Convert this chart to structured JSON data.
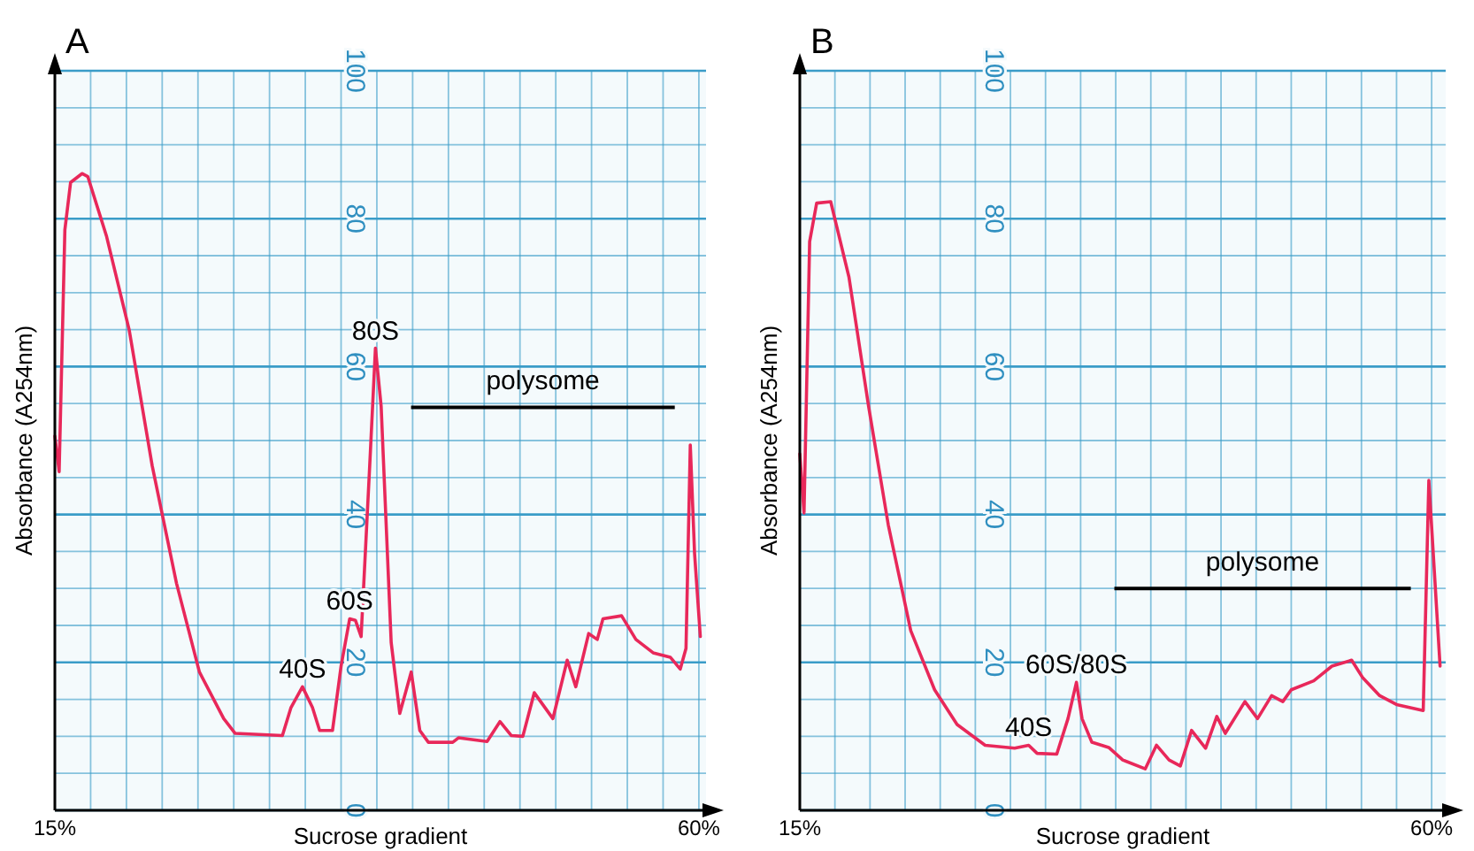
{
  "chart_data": [
    {
      "type": "line",
      "title": "A",
      "xlabel": "Sucrose gradient",
      "ylabel": "Absorbance (A254nm)",
      "xlim": [
        15,
        60.5
      ],
      "ylim": [
        0,
        100
      ],
      "xticks": [
        {
          "value": 15,
          "label": "15%"
        },
        {
          "value": 17.5,
          "label": null
        },
        {
          "value": 20,
          "label": null
        },
        {
          "value": 22.5,
          "label": null
        },
        {
          "value": 25,
          "label": null
        },
        {
          "value": 27.5,
          "label": null
        },
        {
          "value": 30,
          "label": null
        },
        {
          "value": 32.5,
          "label": null
        },
        {
          "value": 35,
          "label": null
        },
        {
          "value": 37.5,
          "label": null
        },
        {
          "value": 40,
          "label": null
        },
        {
          "value": 42.5,
          "label": null
        },
        {
          "value": 45,
          "label": null
        },
        {
          "value": 47.5,
          "label": null
        },
        {
          "value": 50,
          "label": null
        },
        {
          "value": 52.5,
          "label": null
        },
        {
          "value": 55,
          "label": null
        },
        {
          "value": 57.5,
          "label": null
        },
        {
          "value": 60,
          "label": "60%"
        }
      ],
      "yticks": [
        0,
        {
          "value": 5,
          "label": null
        },
        {
          "value": 10,
          "label": null
        },
        {
          "value": 15,
          "label": null
        },
        20,
        {
          "value": 25,
          "label": null
        },
        {
          "value": 30,
          "label": null
        },
        {
          "value": 35,
          "label": null
        },
        40,
        {
          "value": 45,
          "label": null
        },
        {
          "value": 50,
          "label": null
        },
        {
          "value": 55,
          "label": null
        },
        60,
        {
          "value": 65,
          "label": null
        },
        {
          "value": 70,
          "label": null
        },
        {
          "value": 75,
          "label": null
        },
        80,
        {
          "value": 85,
          "label": null
        },
        {
          "value": 90,
          "label": null
        },
        {
          "value": 95,
          "label": null
        },
        100
      ],
      "grid": true,
      "marker": "none",
      "line_style": "solid",
      "series": [
        {
          "color": "#e8285a",
          "x": [
            15.0,
            15.3,
            15.7,
            16.1,
            16.9,
            17.3,
            18.6,
            20.2,
            21.8,
            23.5,
            25.1,
            26.8,
            27.6,
            30.9,
            31.5,
            32.3,
            33.0,
            33.5,
            34.4,
            35.0,
            35.6,
            36.0,
            36.4,
            37.0,
            37.4,
            37.8,
            38.5,
            39.1,
            39.9,
            40.5,
            41.1,
            42.8,
            43.2,
            45.2,
            46.1,
            46.9,
            47.7,
            48.5,
            49.8,
            50.8,
            51.4,
            52.3,
            52.9,
            53.3,
            54.6,
            55.6,
            56.8,
            58.0,
            58.7,
            59.1,
            59.4,
            59.7,
            60.1
          ],
          "values": [
            50.6,
            45.8,
            78.5,
            84.9,
            86.1,
            85.7,
            77.7,
            64.9,
            46.6,
            30.7,
            18.7,
            12.4,
            10.4,
            10.1,
            13.9,
            16.7,
            13.9,
            10.8,
            10.8,
            19.5,
            25.9,
            25.7,
            23.5,
            46.6,
            62.5,
            54.6,
            22.7,
            13.1,
            18.7,
            10.8,
            9.2,
            9.2,
            9.8,
            9.3,
            12.0,
            10.1,
            10.0,
            15.9,
            12.4,
            20.3,
            16.7,
            23.9,
            23.1,
            25.9,
            26.3,
            23.1,
            21.3,
            20.7,
            19.1,
            21.9,
            49.4,
            34.7,
            23.5
          ]
        }
      ],
      "annotations": [
        {
          "text": "40S",
          "x": 32.3,
          "y": 16.7
        },
        {
          "text": "60S",
          "x": 35.6,
          "y": 25.9
        },
        {
          "text": "80S",
          "x": 37.4,
          "y": 62.5
        },
        "polysome"
      ]
    },
    {
      "type": "line",
      "title": "B",
      "xlabel": "Sucrose gradient",
      "ylabel": "Absorbance (A254nm)",
      "xlim": [
        15,
        61
      ],
      "ylim": [
        0,
        100
      ],
      "xticks": [
        {
          "value": 15,
          "label": "15%"
        },
        {
          "value": 17.5,
          "label": null
        },
        {
          "value": 20,
          "label": null
        },
        {
          "value": 22.5,
          "label": null
        },
        {
          "value": 25,
          "label": null
        },
        {
          "value": 27.5,
          "label": null
        },
        {
          "value": 30,
          "label": null
        },
        {
          "value": 32.5,
          "label": null
        },
        {
          "value": 35,
          "label": null
        },
        {
          "value": 37.5,
          "label": null
        },
        {
          "value": 40,
          "label": null
        },
        {
          "value": 42.5,
          "label": null
        },
        {
          "value": 45,
          "label": null
        },
        {
          "value": 47.5,
          "label": null
        },
        {
          "value": 50,
          "label": null
        },
        {
          "value": 52.5,
          "label": null
        },
        {
          "value": 55,
          "label": null
        },
        {
          "value": 57.5,
          "label": null
        },
        {
          "value": 60,
          "label": "60%"
        }
      ],
      "yticks": [
        0,
        {
          "value": 5,
          "label": null
        },
        {
          "value": 10,
          "label": null
        },
        {
          "value": 15,
          "label": null
        },
        20,
        {
          "value": 25,
          "label": null
        },
        {
          "value": 30,
          "label": null
        },
        {
          "value": 35,
          "label": null
        },
        40,
        {
          "value": 45,
          "label": null
        },
        {
          "value": 50,
          "label": null
        },
        {
          "value": 55,
          "label": null
        },
        60,
        {
          "value": 65,
          "label": null
        },
        {
          "value": 70,
          "label": null
        },
        {
          "value": 75,
          "label": null
        },
        80,
        {
          "value": 85,
          "label": null
        },
        {
          "value": 90,
          "label": null
        },
        {
          "value": 95,
          "label": null
        },
        100
      ],
      "grid": true,
      "marker": "none",
      "line_style": "solid",
      "series": [
        {
          "color": "#e8285a",
          "x": [
            15.0,
            15.3,
            15.7,
            16.2,
            17.2,
            18.5,
            19.9,
            21.3,
            22.9,
            24.6,
            26.2,
            28.2,
            30.3,
            31.3,
            31.9,
            33.3,
            34.1,
            34.7,
            35.1,
            35.8,
            37.0,
            38.0,
            39.6,
            40.4,
            41.3,
            42.1,
            42.9,
            43.9,
            44.7,
            45.3,
            46.7,
            47.6,
            48.6,
            49.4,
            50.0,
            51.6,
            52.9,
            54.3,
            55.1,
            56.3,
            57.5,
            59.4,
            59.8,
            60.6
          ],
          "values": [
            48.2,
            40.2,
            76.9,
            82.1,
            82.3,
            72.1,
            54.6,
            38.6,
            24.3,
            16.3,
            11.6,
            8.8,
            8.4,
            8.8,
            7.7,
            7.6,
            12.4,
            17.3,
            12.4,
            9.2,
            8.5,
            6.8,
            5.6,
            8.8,
            6.8,
            6.0,
            10.8,
            8.4,
            12.7,
            10.4,
            14.7,
            12.4,
            15.5,
            14.7,
            16.3,
            17.5,
            19.5,
            20.3,
            17.9,
            15.5,
            14.3,
            13.5,
            44.6,
            19.5
          ]
        }
      ],
      "annotations": [
        {
          "text": "40S",
          "x": 31.3,
          "y": 8.8
        },
        {
          "text": "60S/80S",
          "x": 34.7,
          "y": 17.3
        },
        "polysome"
      ]
    }
  ]
}
